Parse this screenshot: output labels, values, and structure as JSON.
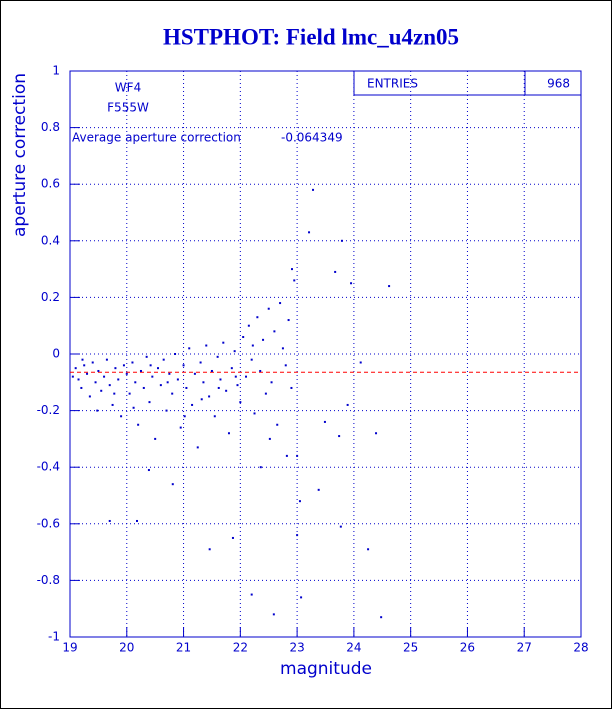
{
  "chart_data": {
    "type": "scatter",
    "title": "HSTPHOT: Field lmc_u4zn05",
    "x_label": "magnitude",
    "y_label": "aperture correction",
    "filter_chip": "WF4",
    "filter_name": "F555W",
    "average_label": "Average aperture correction",
    "average": -0.064349,
    "average_color": "#ff0000",
    "entries_label": "ENTRIES",
    "entries": 968,
    "color": "#0000cc",
    "grid": true,
    "xlim": [
      19,
      28
    ],
    "xticks": [
      19,
      20,
      21,
      22,
      23,
      24,
      25,
      26,
      27,
      28
    ],
    "ylim": [
      -1,
      1
    ],
    "yticks": [
      -1,
      -0.8,
      -0.6,
      -0.4,
      -0.2,
      0,
      0.2,
      0.4,
      0.6,
      0.8,
      1
    ],
    "x": [
      23.28,
      23.21,
      23.79,
      24.62,
      23.67,
      22.91,
      23.95,
      24.12,
      23.49,
      23.89,
      23.74,
      24.39,
      23.38,
      23.77,
      24.25,
      24.48,
      23.07,
      22.59,
      22.2,
      21.46,
      19.7,
      20.18,
      21.87,
      23.0,
      23.05,
      23.0,
      22.36,
      20.81,
      20.39,
      19.1,
      19.15,
      19.2,
      19.25,
      19.3,
      19.35,
      19.4,
      19.45,
      19.5,
      19.55,
      19.6,
      19.65,
      19.7,
      19.75,
      19.8,
      19.85,
      19.9,
      19.95,
      20.0,
      20.05,
      20.1,
      20.15,
      20.2,
      20.25,
      20.3,
      20.35,
      20.4,
      20.45,
      20.5,
      20.55,
      20.6,
      20.65,
      20.7,
      20.75,
      20.8,
      20.85,
      20.9,
      20.95,
      21.0,
      21.05,
      21.1,
      21.15,
      21.2,
      21.25,
      21.3,
      21.35,
      21.4,
      21.45,
      21.5,
      21.55,
      21.6,
      21.65,
      21.7,
      21.75,
      21.8,
      21.85,
      21.9,
      21.95,
      22.0,
      22.05,
      22.1,
      22.15,
      22.2,
      22.25,
      22.3,
      22.35,
      22.4,
      22.45,
      22.5,
      22.55,
      22.6,
      22.65,
      22.7,
      22.75,
      22.8,
      22.85,
      22.9,
      22.95,
      19.05,
      19.22,
      19.48,
      19.78,
      20.12,
      20.42,
      20.72,
      21.02,
      21.32,
      21.62,
      21.92,
      22.22,
      22.52,
      22.82
    ],
    "values": [
      0.58,
      0.43,
      0.4,
      0.24,
      0.29,
      0.3,
      0.25,
      -0.03,
      -0.24,
      -0.18,
      -0.29,
      -0.28,
      -0.48,
      -0.61,
      -0.69,
      -0.93,
      -0.86,
      -0.92,
      -0.85,
      -0.69,
      -0.59,
      -0.59,
      -0.65,
      -0.64,
      -0.52,
      -0.36,
      -0.4,
      -0.46,
      -0.41,
      -0.05,
      -0.09,
      -0.12,
      -0.04,
      -0.07,
      -0.15,
      -0.03,
      -0.1,
      -0.06,
      -0.13,
      -0.08,
      -0.02,
      -0.11,
      -0.18,
      -0.05,
      -0.09,
      -0.22,
      -0.04,
      -0.07,
      -0.14,
      -0.03,
      -0.1,
      -0.25,
      -0.06,
      -0.12,
      -0.01,
      -0.17,
      -0.08,
      -0.3,
      -0.05,
      -0.11,
      -0.02,
      -0.2,
      -0.07,
      -0.14,
      0,
      -0.09,
      -0.26,
      -0.04,
      -0.12,
      0.02,
      -0.18,
      -0.07,
      -0.33,
      -0.03,
      -0.1,
      0.03,
      -0.15,
      -0.06,
      -0.22,
      -0.01,
      -0.09,
      0.04,
      -0.13,
      -0.28,
      -0.05,
      0.01,
      -0.11,
      -0.17,
      0.06,
      -0.08,
      0.1,
      -0.02,
      -0.21,
      0.13,
      -0.06,
      0.05,
      -0.14,
      0.16,
      -0.1,
      0.08,
      -0.25,
      0.18,
      0.02,
      -0.04,
      0.12,
      -0.12,
      0.26,
      -0.08,
      -0.02,
      -0.2,
      -0.14,
      -0.19,
      -0.04,
      -0.1,
      -0.22,
      -0.16,
      -0.12,
      -0.08,
      0.03,
      -0.3,
      -0.36
    ]
  }
}
